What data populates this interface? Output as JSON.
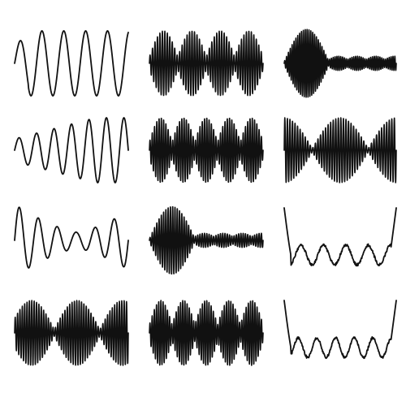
{
  "stroke_color": "#111111",
  "background_color": "#ffffff",
  "waves": [
    {
      "row": 1,
      "col": 1,
      "kind": "sine",
      "cycles": 5.2,
      "envelope": "start-wobble",
      "dense": false
    },
    {
      "row": 1,
      "col": 2,
      "kind": "modulated",
      "cycles": 46,
      "envelope": "beats-4",
      "dense": true
    },
    {
      "row": 1,
      "col": 3,
      "kind": "modulated",
      "cycles": 60,
      "envelope": "burst-then-small-beats",
      "dense": true
    },
    {
      "row": 2,
      "col": 1,
      "kind": "sine",
      "cycles": 6.5,
      "envelope": "growing",
      "dense": false
    },
    {
      "row": 2,
      "col": 2,
      "kind": "modulated",
      "cycles": 50,
      "envelope": "beats-5",
      "dense": true
    },
    {
      "row": 2,
      "col": 3,
      "kind": "modulated",
      "cycles": 44,
      "envelope": "beats-2-centered",
      "dense": true
    },
    {
      "row": 3,
      "col": 1,
      "kind": "sine",
      "cycles": 6,
      "envelope": "dip-middle",
      "dense": false
    },
    {
      "row": 3,
      "col": 2,
      "kind": "modulated",
      "cycles": 50,
      "envelope": "burst-then-small-beats",
      "dense": true
    },
    {
      "row": 3,
      "col": 3,
      "kind": "noisy",
      "cycles": 5,
      "envelope": "edge-drop",
      "dense": false
    },
    {
      "row": 4,
      "col": 1,
      "kind": "modulated",
      "cycles": 48,
      "envelope": "beats-3",
      "dense": true
    },
    {
      "row": 4,
      "col": 2,
      "kind": "modulated",
      "cycles": 52,
      "envelope": "beats-5",
      "dense": true
    },
    {
      "row": 4,
      "col": 3,
      "kind": "noisy",
      "cycles": 6,
      "envelope": "edge-drop",
      "dense": false
    }
  ]
}
